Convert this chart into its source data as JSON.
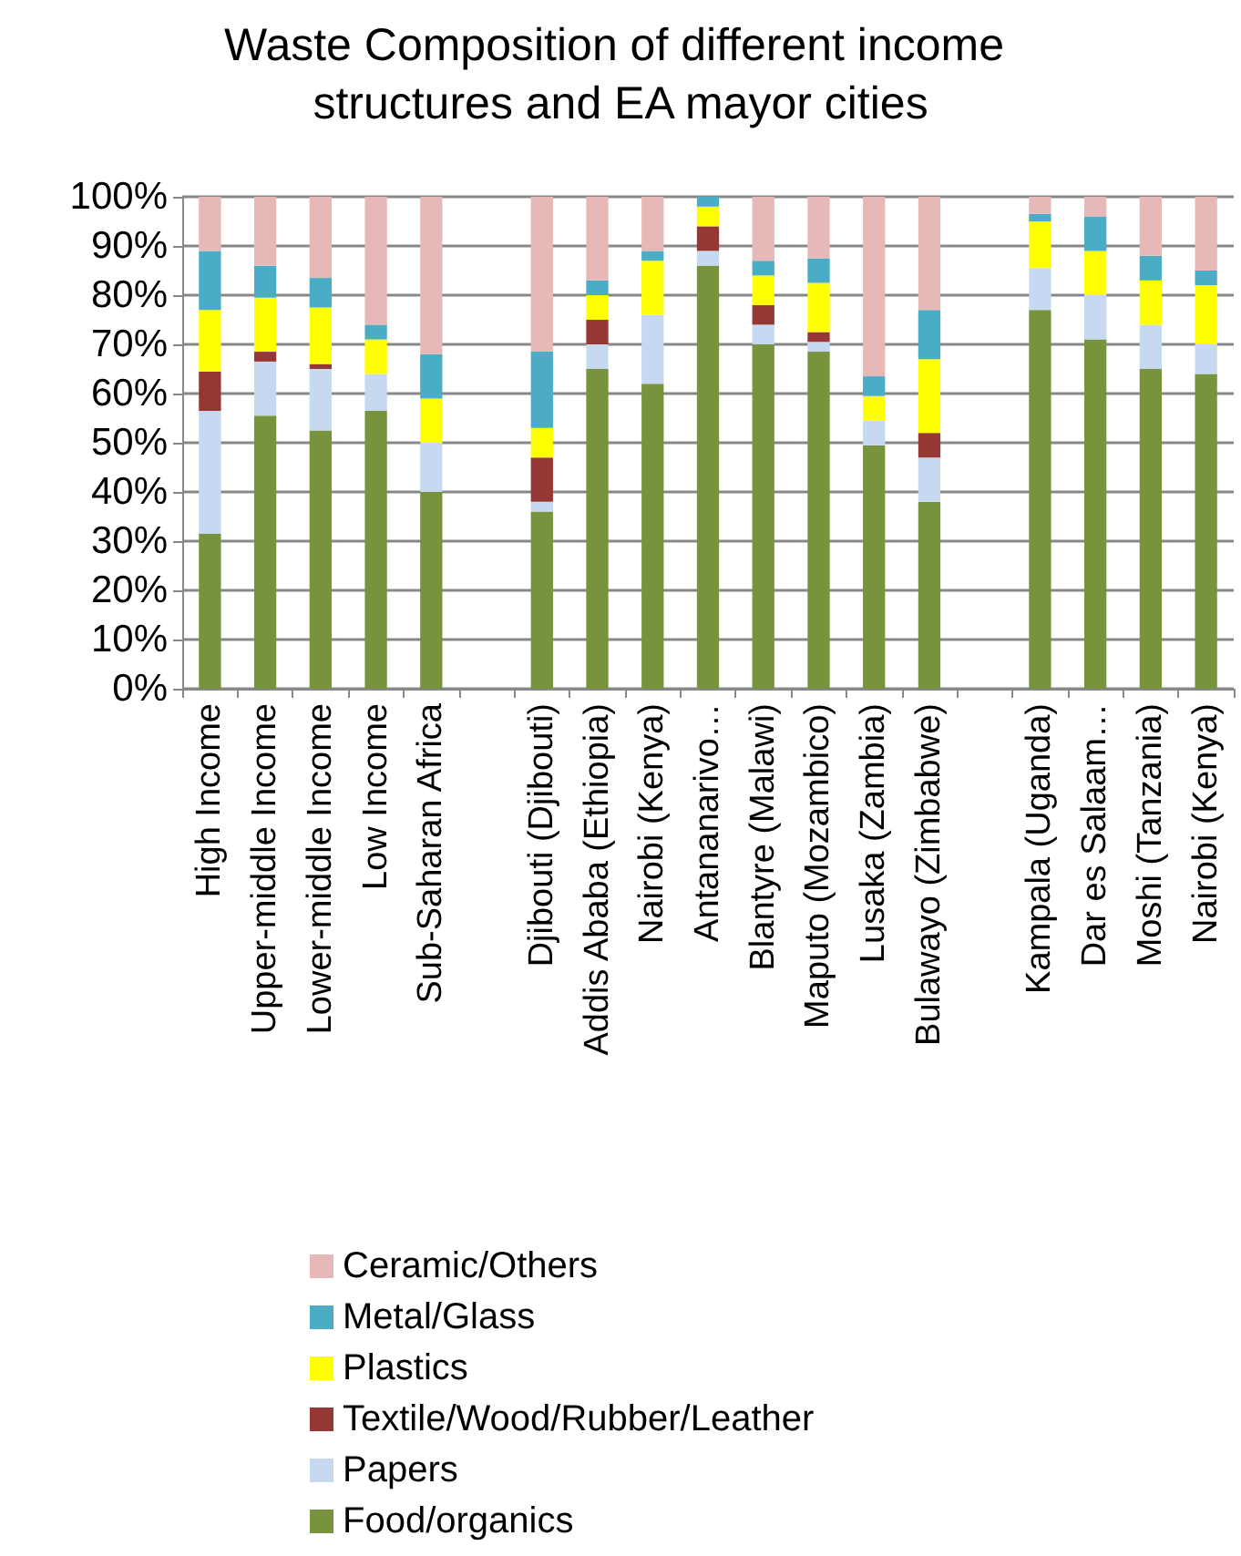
{
  "chart_data": {
    "type": "bar",
    "title": "Waste Composition of different income structures and EA mayor cities",
    "categories": [
      "High Income",
      "Upper-middle Income",
      "Lower-middle Income",
      "Low Income",
      "Sub-Saharan Africa",
      null,
      "Djibouti (Djibouti)",
      "Addis Ababa (Ethiopia)",
      "Nairobi (Kenya)",
      "Antananarivo…",
      "Blantyre (Malawi)",
      "Maputo (Mozambico)",
      "Lusaka (Zambia)",
      "Bulawayo (Zimbabwe)",
      null,
      "Kampala (Uganda)",
      "Dar es Salaam…",
      "Moshi (Tanzania)",
      "Nairobi (Kenya)"
    ],
    "stacked": true,
    "series": [
      {
        "name": "Food/organics",
        "color": "#77933c",
        "values": [
          31.5,
          55.5,
          52.5,
          56.5,
          40,
          null,
          36,
          65,
          62,
          86,
          70,
          68.5,
          49.5,
          38,
          null,
          77,
          71,
          65,
          64
        ]
      },
      {
        "name": "Papers",
        "color": "#c6d9f1",
        "values": [
          25,
          11,
          12.5,
          7.5,
          10,
          null,
          2,
          5,
          14,
          3,
          4,
          2,
          5,
          9,
          null,
          8.5,
          9,
          9,
          6
        ]
      },
      {
        "name": "Textile/Wood/Rubber/Leather",
        "color": "#953735",
        "values": [
          8,
          2,
          1,
          0,
          0,
          null,
          9,
          5,
          0,
          5,
          4,
          2,
          0,
          5,
          null,
          0,
          0,
          0,
          0
        ]
      },
      {
        "name": "Plastics",
        "color": "#ffff00",
        "values": [
          12.5,
          11,
          11.5,
          7,
          9,
          null,
          6,
          5,
          11,
          4,
          6,
          10,
          5,
          15,
          null,
          9.5,
          9,
          9,
          12
        ]
      },
      {
        "name": "Metal/Glass",
        "color": "#4bacc6",
        "values": [
          12,
          6.5,
          6,
          3,
          9,
          null,
          15.5,
          3,
          2,
          2,
          3,
          5,
          4,
          10,
          null,
          1.5,
          7,
          5,
          3
        ]
      },
      {
        "name": "Ceramic/Others",
        "color": "#e6b9b8",
        "values": [
          11,
          14,
          16.5,
          26,
          32,
          null,
          31.5,
          17,
          11,
          0,
          13,
          12.5,
          36.5,
          23,
          null,
          3.5,
          4,
          12,
          15
        ]
      }
    ],
    "ylim": [
      0,
      100
    ],
    "yticks": [
      {
        "value": 0,
        "label": "0%"
      },
      {
        "value": 10,
        "label": "10%"
      },
      {
        "value": 20,
        "label": "20%"
      },
      {
        "value": 30,
        "label": "30%"
      },
      {
        "value": 40,
        "label": "40%"
      },
      {
        "value": 50,
        "label": "50%"
      },
      {
        "value": 60,
        "label": "60%"
      },
      {
        "value": 70,
        "label": "70%"
      },
      {
        "value": 80,
        "label": "80%"
      },
      {
        "value": 90,
        "label": "90%"
      },
      {
        "value": 100,
        "label": "100%"
      }
    ],
    "grid": "y",
    "legend": "bottom"
  }
}
